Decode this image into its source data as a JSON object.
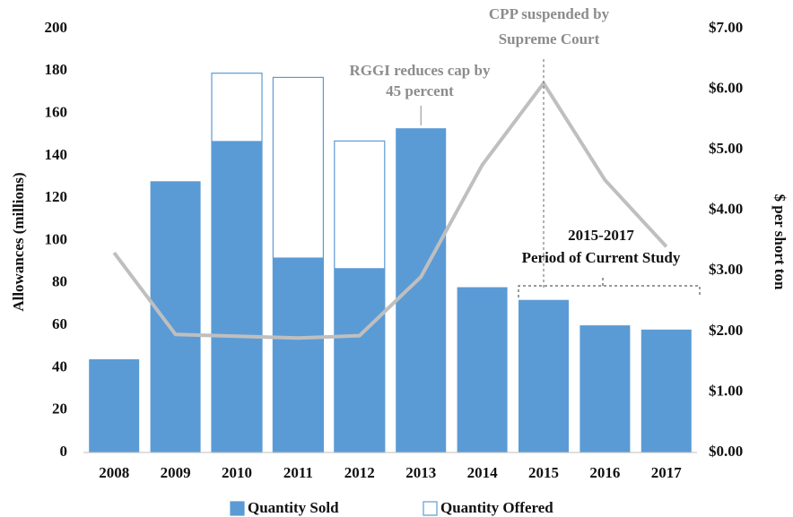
{
  "chart_data": {
    "type": "bar",
    "categories": [
      "2008",
      "2009",
      "2010",
      "2011",
      "2012",
      "2013",
      "2014",
      "2015",
      "2016",
      "2017"
    ],
    "series": [
      {
        "name": "Quantity Sold",
        "color": "#5b9bd5",
        "values": [
          44,
          128,
          147,
          92,
          87,
          153,
          78,
          72,
          60,
          58
        ]
      },
      {
        "name": "Quantity Offered",
        "color": "#5b9bd5",
        "values": [
          null,
          null,
          179,
          177,
          147,
          null,
          null,
          null,
          null,
          null
        ]
      },
      {
        "type": "line",
        "axis": "y2",
        "color": "#bfbfbf",
        "values": [
          3.3,
          1.95,
          1.92,
          1.89,
          1.93,
          2.9,
          4.75,
          6.1,
          4.5,
          3.4
        ]
      }
    ],
    "ylabel": "Allowances (millions)",
    "y2label": "$ per short ton",
    "ylim": [
      0,
      200
    ],
    "yticks": [
      0,
      20,
      40,
      60,
      80,
      100,
      120,
      140,
      160,
      180,
      200
    ],
    "y2lim": [
      0,
      7
    ],
    "y2ticks": [
      {
        "value": 0,
        "label": "$0.00"
      },
      {
        "value": 1,
        "label": "$1.00"
      },
      {
        "value": 2,
        "label": "$2.00"
      },
      {
        "value": 3,
        "label": "$3.00"
      },
      {
        "value": 4,
        "label": "$4.00"
      },
      {
        "value": 5,
        "label": "$5.00"
      },
      {
        "value": 6,
        "label": "$6.00"
      },
      {
        "value": 7,
        "label": "$7.00"
      }
    ],
    "annotations": [
      [
        "RGGI reduces cap by",
        "45 percent"
      ],
      [
        "CPP suspended by",
        "Supreme Court"
      ],
      [
        "2015-2017",
        "Period of Current Study"
      ]
    ],
    "legend": "bottom"
  }
}
